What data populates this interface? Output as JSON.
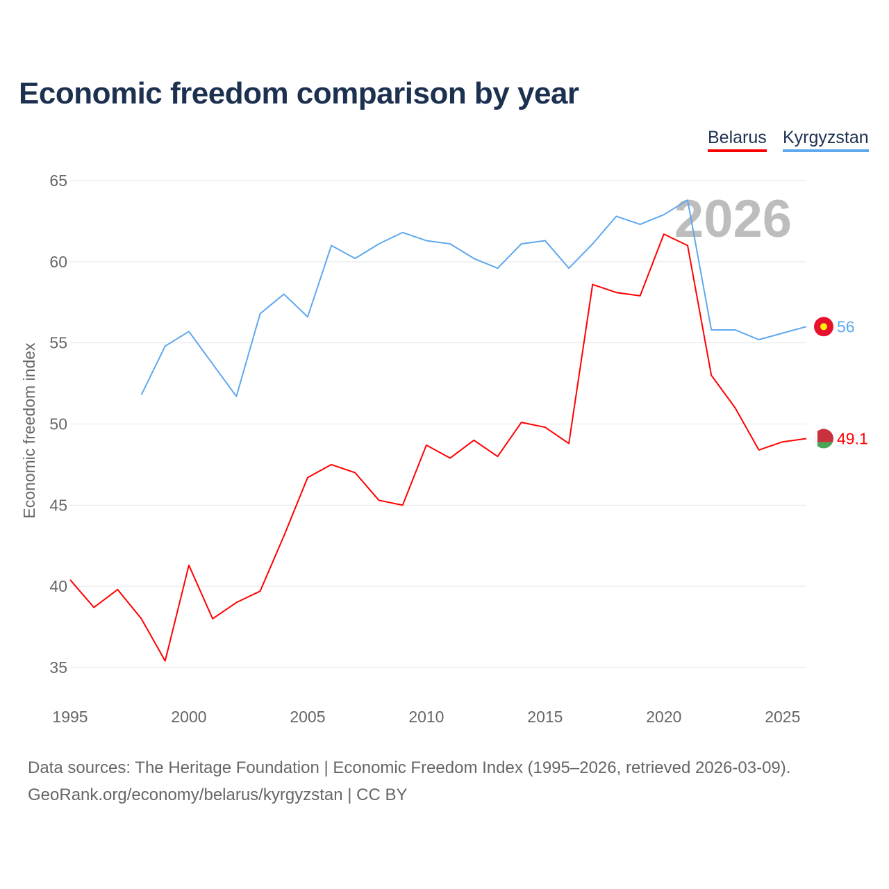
{
  "chart_data": {
    "type": "line",
    "title": "Economic freedom comparison by year",
    "xlabel": "",
    "ylabel": "Economic freedom index",
    "xlim": [
      1995,
      2026
    ],
    "ylim": [
      35,
      65
    ],
    "yticks": [
      35,
      40,
      45,
      50,
      55,
      60,
      65
    ],
    "xticks": [
      1995,
      2000,
      2005,
      2010,
      2015,
      2020,
      2025
    ],
    "grid": true,
    "legend_position": "top-right",
    "watermark_year": "2026",
    "series": [
      {
        "name": "Belarus",
        "color": "#ff0000",
        "end_label": "49.1",
        "flag": "belarus-flag",
        "x": [
          1995,
          1996,
          1997,
          1998,
          1999,
          2000,
          2001,
          2002,
          2003,
          2004,
          2005,
          2006,
          2007,
          2008,
          2009,
          2010,
          2011,
          2012,
          2013,
          2014,
          2015,
          2016,
          2017,
          2018,
          2019,
          2020,
          2021,
          2022,
          2023,
          2024,
          2025,
          2026
        ],
        "values": [
          40.4,
          38.7,
          39.8,
          38.0,
          35.4,
          41.3,
          38.0,
          39.0,
          39.7,
          43.1,
          46.7,
          47.5,
          47.0,
          45.3,
          45.0,
          48.7,
          47.9,
          49.0,
          48.0,
          50.1,
          49.8,
          48.8,
          58.6,
          58.1,
          57.9,
          61.7,
          61.0,
          53.0,
          51.0,
          48.4,
          48.9,
          49.1
        ]
      },
      {
        "name": "Kyrgyzstan",
        "color": "#5ea8ee",
        "end_label": "56",
        "flag": "kyrgyzstan-flag",
        "x": [
          1998,
          1999,
          2000,
          2001,
          2002,
          2003,
          2004,
          2005,
          2006,
          2007,
          2008,
          2009,
          2010,
          2011,
          2012,
          2013,
          2014,
          2015,
          2016,
          2017,
          2018,
          2019,
          2020,
          2021,
          2022,
          2023,
          2024,
          2025,
          2026
        ],
        "values": [
          51.8,
          54.8,
          55.7,
          53.7,
          51.7,
          56.8,
          58.0,
          56.6,
          61.0,
          60.2,
          61.1,
          61.8,
          61.3,
          61.1,
          60.2,
          59.6,
          61.1,
          61.3,
          59.6,
          61.1,
          62.8,
          62.3,
          62.9,
          63.8,
          55.8,
          55.8,
          55.2,
          55.6,
          56.0
        ]
      }
    ]
  },
  "footer": {
    "line1": "Data sources: The Heritage Foundation | Economic Freedom Index (1995–2026, retrieved 2026-03-09).",
    "line2": "GeoRank.org/economy/belarus/kyrgyzstan | CC BY"
  }
}
